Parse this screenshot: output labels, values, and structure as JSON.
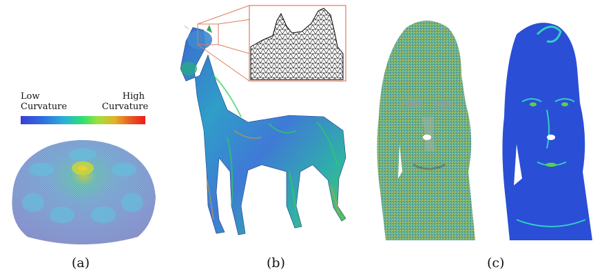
{
  "legend": {
    "low_label_line1": "Low",
    "low_label_line2": "Curvature",
    "high_label_line1": "High",
    "high_label_line2": "Curvature"
  },
  "captions": [
    "(a)",
    "(b)",
    "(c)"
  ],
  "colormap": {
    "low": "#3a3fd6",
    "mid": "#2fe070",
    "high": "#f01a1a"
  }
}
